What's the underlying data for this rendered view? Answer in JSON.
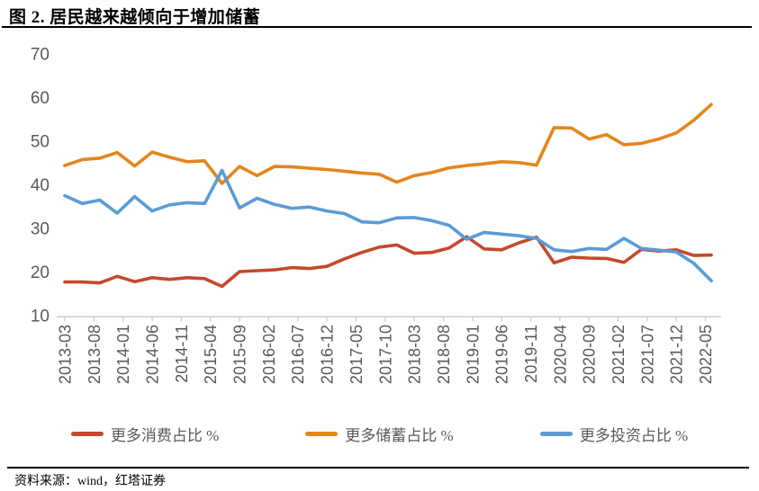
{
  "header": {
    "title": "图 2. 居民越来越倾向于增加储蓄"
  },
  "footer": {
    "source": "资料来源：wind，红塔证券"
  },
  "legend": [
    {
      "label": "更多消费占比 %",
      "color": "#C4492C"
    },
    {
      "label": "更多储蓄占比 %",
      "color": "#E2861D"
    },
    {
      "label": "更多投资占比 %",
      "color": "#5B9BD5"
    }
  ],
  "colors": {
    "axis_text": "#595959",
    "axis_line": "#C9C9C9",
    "red": "#C4492C",
    "orange": "#E2861D",
    "blue": "#5B9BD5"
  },
  "chart_data": {
    "type": "line",
    "title": "图 2. 居民越来越倾向于增加储蓄",
    "xlabel": "",
    "ylabel": "",
    "ylim": [
      10,
      70
    ],
    "yticks": [
      70,
      60,
      50,
      40,
      30,
      20,
      10
    ],
    "grid": false,
    "legend_position": "bottom",
    "x_start": "2013-03",
    "x_end": "2022-06",
    "x_step_months": 3,
    "x_months_total": 111,
    "x_tick_every_months": 5,
    "x_tick_labels": [
      "2013-03",
      "2013-08",
      "2014-01",
      "2014-06",
      "2014-11",
      "2015-04",
      "2015-09",
      "2016-02",
      "2016-07",
      "2016-12",
      "2017-05",
      "2017-10",
      "2018-03",
      "2018-08",
      "2019-01",
      "2019-06",
      "2019-11",
      "2020-04",
      "2020-09",
      "2021-02",
      "2021-07",
      "2021-12",
      "2022-05"
    ],
    "series": [
      {
        "name": "更多消费占比 %",
        "color": "#C4492C",
        "values": [
          17.6,
          17.6,
          17.4,
          18.9,
          17.7,
          18.6,
          18.2,
          18.6,
          18.4,
          16.6,
          20.0,
          20.2,
          20.4,
          20.9,
          20.7,
          21.2,
          22.9,
          24.4,
          25.6,
          26.1,
          24.2,
          24.4,
          25.4,
          28.0,
          25.2,
          25.0,
          26.6,
          27.9,
          22.0,
          23.3,
          23.1,
          23.0,
          22.1,
          25.1,
          24.7,
          25.0,
          23.7,
          23.8
        ]
      },
      {
        "name": "更多储蓄占比 %",
        "color": "#E2861D",
        "values": [
          44.3,
          45.7,
          46.0,
          47.3,
          44.2,
          47.4,
          46.2,
          45.2,
          45.4,
          40.2,
          44.1,
          42.0,
          44.1,
          44.0,
          43.7,
          43.4,
          43.0,
          42.6,
          42.3,
          40.5,
          42.0,
          42.7,
          43.8,
          44.3,
          44.7,
          45.2,
          45.0,
          44.4,
          53.0,
          52.9,
          50.4,
          51.4,
          49.1,
          49.4,
          50.4,
          51.8,
          54.7,
          58.3
        ]
      },
      {
        "name": "更多投资占比 %",
        "color": "#5B9BD5",
        "values": [
          37.4,
          35.6,
          36.4,
          33.4,
          37.2,
          33.9,
          35.3,
          35.8,
          35.6,
          43.2,
          34.6,
          36.8,
          35.4,
          34.5,
          34.8,
          33.9,
          33.3,
          31.4,
          31.2,
          32.3,
          32.4,
          31.7,
          30.6,
          27.4,
          29.0,
          28.6,
          28.2,
          27.6,
          25.0,
          24.6,
          25.3,
          25.1,
          27.6,
          25.3,
          24.9,
          24.5,
          21.9,
          17.9
        ]
      }
    ]
  }
}
